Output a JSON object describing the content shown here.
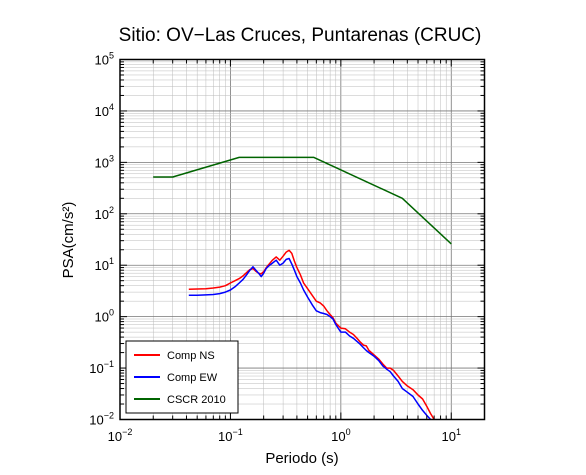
{
  "chart_data": {
    "type": "line",
    "title": "Sitio: OV−Las Cruces, Puntarenas (CRUC)",
    "xlabel": "Periodo (s)",
    "ylabel": "PSA(cm/s²)",
    "xscale": "log",
    "yscale": "log",
    "xlim": [
      0.01,
      20
    ],
    "ylim": [
      0.01,
      100000
    ],
    "grid": true,
    "legend_position": "bottom-left",
    "x_ticks": [
      {
        "base": "10",
        "exp": "−2"
      },
      {
        "base": "10",
        "exp": "−1"
      },
      {
        "base": "10",
        "exp": "0"
      },
      {
        "base": "10",
        "exp": "1"
      }
    ],
    "y_ticks": [
      {
        "base": "10",
        "exp": "−2"
      },
      {
        "base": "10",
        "exp": "−1"
      },
      {
        "base": "10",
        "exp": "0"
      },
      {
        "base": "10",
        "exp": "1"
      },
      {
        "base": "10",
        "exp": "2"
      },
      {
        "base": "10",
        "exp": "3"
      },
      {
        "base": "10",
        "exp": "4"
      },
      {
        "base": "10",
        "exp": "5"
      }
    ],
    "series": [
      {
        "name": "Comp NS",
        "color": "#ff0000",
        "points": [
          [
            0.042,
            3.4
          ],
          [
            0.05,
            3.45
          ],
          [
            0.06,
            3.5
          ],
          [
            0.07,
            3.6
          ],
          [
            0.08,
            3.75
          ],
          [
            0.09,
            4.0
          ],
          [
            0.1,
            4.5
          ],
          [
            0.11,
            5.0
          ],
          [
            0.12,
            5.5
          ],
          [
            0.13,
            6.2
          ],
          [
            0.14,
            7.2
          ],
          [
            0.15,
            8.2
          ],
          [
            0.16,
            8.6
          ],
          [
            0.17,
            7.6
          ],
          [
            0.18,
            7.0
          ],
          [
            0.19,
            6.8
          ],
          [
            0.2,
            7.5
          ],
          [
            0.21,
            8.8
          ],
          [
            0.22,
            10.0
          ],
          [
            0.24,
            12.5
          ],
          [
            0.26,
            14.5
          ],
          [
            0.28,
            12.5
          ],
          [
            0.3,
            15.0
          ],
          [
            0.32,
            18.0
          ],
          [
            0.34,
            19.5
          ],
          [
            0.36,
            17.0
          ],
          [
            0.38,
            12.0
          ],
          [
            0.4,
            9.0
          ],
          [
            0.43,
            6.5
          ],
          [
            0.46,
            4.5
          ],
          [
            0.5,
            3.5
          ],
          [
            0.55,
            2.6
          ],
          [
            0.6,
            2.0
          ],
          [
            0.65,
            1.85
          ],
          [
            0.7,
            1.6
          ],
          [
            0.75,
            1.3
          ],
          [
            0.8,
            1.1
          ],
          [
            0.85,
            0.95
          ],
          [
            0.9,
            0.75
          ],
          [
            1.0,
            0.6
          ],
          [
            1.1,
            0.58
          ],
          [
            1.2,
            0.5
          ],
          [
            1.3,
            0.45
          ],
          [
            1.4,
            0.38
          ],
          [
            1.5,
            0.32
          ],
          [
            1.6,
            0.28
          ],
          [
            1.7,
            0.27
          ],
          [
            1.8,
            0.22
          ],
          [
            2.0,
            0.18
          ],
          [
            2.2,
            0.15
          ],
          [
            2.4,
            0.12
          ],
          [
            2.6,
            0.1
          ],
          [
            2.8,
            0.1
          ],
          [
            3.0,
            0.09
          ],
          [
            3.3,
            0.07
          ],
          [
            3.6,
            0.055
          ],
          [
            4.0,
            0.045
          ],
          [
            4.5,
            0.038
          ],
          [
            5.0,
            0.03
          ],
          [
            5.5,
            0.025
          ],
          [
            6.0,
            0.018
          ],
          [
            6.5,
            0.013
          ],
          [
            7.0,
            0.01
          ]
        ]
      },
      {
        "name": "Comp EW",
        "color": "#0000ff",
        "points": [
          [
            0.042,
            2.6
          ],
          [
            0.05,
            2.6
          ],
          [
            0.06,
            2.65
          ],
          [
            0.07,
            2.7
          ],
          [
            0.08,
            2.8
          ],
          [
            0.09,
            3.0
          ],
          [
            0.1,
            3.3
          ],
          [
            0.11,
            3.8
          ],
          [
            0.12,
            4.5
          ],
          [
            0.13,
            5.3
          ],
          [
            0.14,
            6.5
          ],
          [
            0.15,
            8.0
          ],
          [
            0.16,
            9.3
          ],
          [
            0.17,
            8.0
          ],
          [
            0.18,
            7.0
          ],
          [
            0.19,
            6.0
          ],
          [
            0.2,
            7.0
          ],
          [
            0.21,
            8.5
          ],
          [
            0.22,
            9.5
          ],
          [
            0.24,
            11.0
          ],
          [
            0.26,
            12.5
          ],
          [
            0.28,
            10.0
          ],
          [
            0.3,
            11.0
          ],
          [
            0.32,
            13.0
          ],
          [
            0.34,
            13.5
          ],
          [
            0.36,
            10.5
          ],
          [
            0.38,
            8.0
          ],
          [
            0.4,
            6.0
          ],
          [
            0.43,
            4.5
          ],
          [
            0.46,
            3.3
          ],
          [
            0.5,
            2.4
          ],
          [
            0.55,
            1.7
          ],
          [
            0.6,
            1.3
          ],
          [
            0.65,
            1.2
          ],
          [
            0.7,
            1.15
          ],
          [
            0.75,
            1.1
          ],
          [
            0.8,
            1.0
          ],
          [
            0.85,
            0.9
          ],
          [
            0.9,
            0.7
          ],
          [
            1.0,
            0.5
          ],
          [
            1.1,
            0.5
          ],
          [
            1.2,
            0.42
          ],
          [
            1.3,
            0.38
          ],
          [
            1.4,
            0.33
          ],
          [
            1.5,
            0.29
          ],
          [
            1.6,
            0.25
          ],
          [
            1.7,
            0.22
          ],
          [
            1.8,
            0.2
          ],
          [
            2.0,
            0.17
          ],
          [
            2.2,
            0.14
          ],
          [
            2.4,
            0.11
          ],
          [
            2.6,
            0.095
          ],
          [
            2.8,
            0.085
          ],
          [
            3.0,
            0.07
          ],
          [
            3.3,
            0.055
          ],
          [
            3.6,
            0.04
          ],
          [
            4.0,
            0.034
          ],
          [
            4.5,
            0.028
          ],
          [
            5.0,
            0.02
          ],
          [
            5.5,
            0.015
          ],
          [
            6.0,
            0.012
          ],
          [
            6.5,
            0.01
          ]
        ]
      },
      {
        "name": "CSCR 2010",
        "color": "#006400",
        "points": [
          [
            0.02,
            520
          ],
          [
            0.03,
            520
          ],
          [
            0.12,
            1250
          ],
          [
            0.57,
            1250
          ],
          [
            3.6,
            200
          ],
          [
            10.0,
            26
          ]
        ]
      }
    ]
  }
}
